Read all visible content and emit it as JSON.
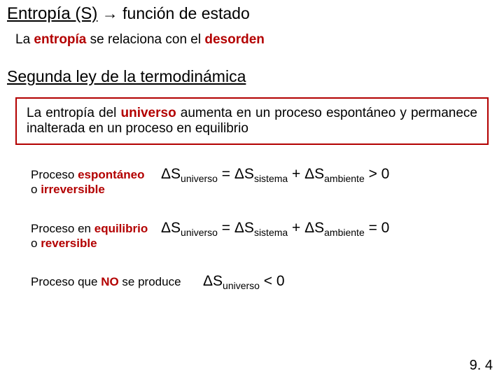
{
  "colors": {
    "text": "#000000",
    "highlight": "#b30000",
    "border": "#b30000"
  },
  "title": {
    "entropy": "Entropía (S)",
    "rest": " → función de estado"
  },
  "subtitle": {
    "pre": "La ",
    "hl1": "entropía",
    "mid": " se relaciona con el ",
    "hl2": "desorden"
  },
  "section_heading": "Segunda ley de la termodinámica",
  "law_box": {
    "pre": "La entropía del ",
    "hl": "universo",
    "post": " aumenta en un proceso espontáneo y permanece inalterada en un proceso en equilibrio"
  },
  "case1": {
    "label_pre": "Proceso ",
    "label_hl1": "espontáneo",
    "label_mid": " o ",
    "label_hl2": "irreversible",
    "eq_d1": "ΔS",
    "eq_s1": "universo",
    "eq_m1": " = ΔS",
    "eq_s2": "sistema",
    "eq_m2": " + ΔS",
    "eq_s3": "ambiente",
    "eq_tail": " > 0"
  },
  "case2": {
    "label_pre": "Proceso en ",
    "label_hl1": "equilibrio",
    "label_mid": " o ",
    "label_hl2": "reversible",
    "eq_d1": "ΔS",
    "eq_s1": "universo",
    "eq_m1": " = ΔS",
    "eq_s2": "sistema",
    "eq_m2": " + ΔS",
    "eq_s3": "ambiente",
    "eq_tail": " = 0"
  },
  "case3": {
    "label_pre": "Proceso que ",
    "label_hl": "NO",
    "label_post": " se produce",
    "eq_d1": "ΔS",
    "eq_s1": "universo",
    "eq_tail": " < 0"
  },
  "page_number": "9. 4"
}
